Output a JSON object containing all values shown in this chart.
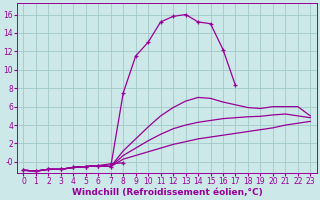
{
  "background_color": "#cce8e8",
  "grid_color": "#a0c8c8",
  "line_color": "#990099",
  "xlabel": "Windchill (Refroidissement éolien,°C)",
  "xlabel_fontsize": 6.5,
  "tick_fontsize": 5.5,
  "yticks": [
    0,
    2,
    4,
    6,
    8,
    10,
    12,
    14,
    16
  ],
  "ytick_labels": [
    "-0",
    "2",
    "4",
    "6",
    "8",
    "10",
    "12",
    "14",
    "16"
  ],
  "xticks": [
    0,
    1,
    2,
    3,
    4,
    5,
    6,
    7,
    8,
    9,
    10,
    11,
    12,
    13,
    14,
    15,
    16,
    17,
    18,
    19,
    20,
    21,
    22,
    23
  ],
  "xlim": [
    -0.5,
    23.5
  ],
  "ylim": [
    -1.2,
    17.2
  ],
  "line_dip_x": [
    0,
    1,
    2,
    3,
    4,
    5,
    6,
    7,
    8
  ],
  "line_dip_y": [
    -0.9,
    -1.0,
    -0.8,
    -0.8,
    -0.6,
    -0.5,
    -0.4,
    -0.2,
    -0.1
  ],
  "line_peak_x": [
    0,
    1,
    2,
    3,
    4,
    5,
    6,
    7,
    8,
    9,
    10,
    11,
    12,
    13,
    14,
    15,
    16,
    17
  ],
  "line_peak_y": [
    -0.9,
    -1.0,
    -0.8,
    -0.8,
    -0.6,
    -0.5,
    -0.4,
    -0.5,
    7.5,
    11.5,
    13.0,
    15.2,
    15.8,
    16.0,
    15.2,
    15.0,
    12.2,
    8.3
  ],
  "line_upper_x": [
    0,
    1,
    2,
    3,
    4,
    5,
    6,
    7,
    8,
    9,
    10,
    11,
    12,
    13,
    14,
    15,
    16,
    17,
    18,
    19,
    20,
    21,
    22,
    23
  ],
  "line_upper_y": [
    -0.9,
    -1.0,
    -0.8,
    -0.8,
    -0.6,
    -0.5,
    -0.4,
    -0.5,
    1.2,
    2.5,
    3.8,
    5.0,
    5.9,
    6.6,
    7.0,
    6.9,
    6.5,
    6.2,
    5.9,
    5.8,
    6.0,
    6.0,
    6.0,
    5.0
  ],
  "line_mid_x": [
    0,
    1,
    2,
    3,
    4,
    5,
    6,
    7,
    8,
    9,
    10,
    11,
    12,
    13,
    14,
    15,
    16,
    17,
    18,
    19,
    20,
    21,
    22,
    23
  ],
  "line_mid_y": [
    -0.9,
    -1.0,
    -0.8,
    -0.8,
    -0.6,
    -0.5,
    -0.4,
    -0.5,
    0.7,
    1.5,
    2.3,
    3.0,
    3.6,
    4.0,
    4.3,
    4.5,
    4.7,
    4.8,
    4.9,
    4.95,
    5.1,
    5.2,
    5.0,
    4.8
  ],
  "line_low_x": [
    0,
    1,
    2,
    3,
    4,
    5,
    6,
    7,
    8,
    9,
    10,
    11,
    12,
    13,
    14,
    15,
    16,
    17,
    18,
    19,
    20,
    21,
    22,
    23
  ],
  "line_low_y": [
    -0.9,
    -1.0,
    -0.8,
    -0.8,
    -0.6,
    -0.5,
    -0.4,
    -0.5,
    0.3,
    0.7,
    1.1,
    1.5,
    1.9,
    2.2,
    2.5,
    2.7,
    2.9,
    3.1,
    3.3,
    3.5,
    3.7,
    4.0,
    4.2,
    4.4
  ]
}
